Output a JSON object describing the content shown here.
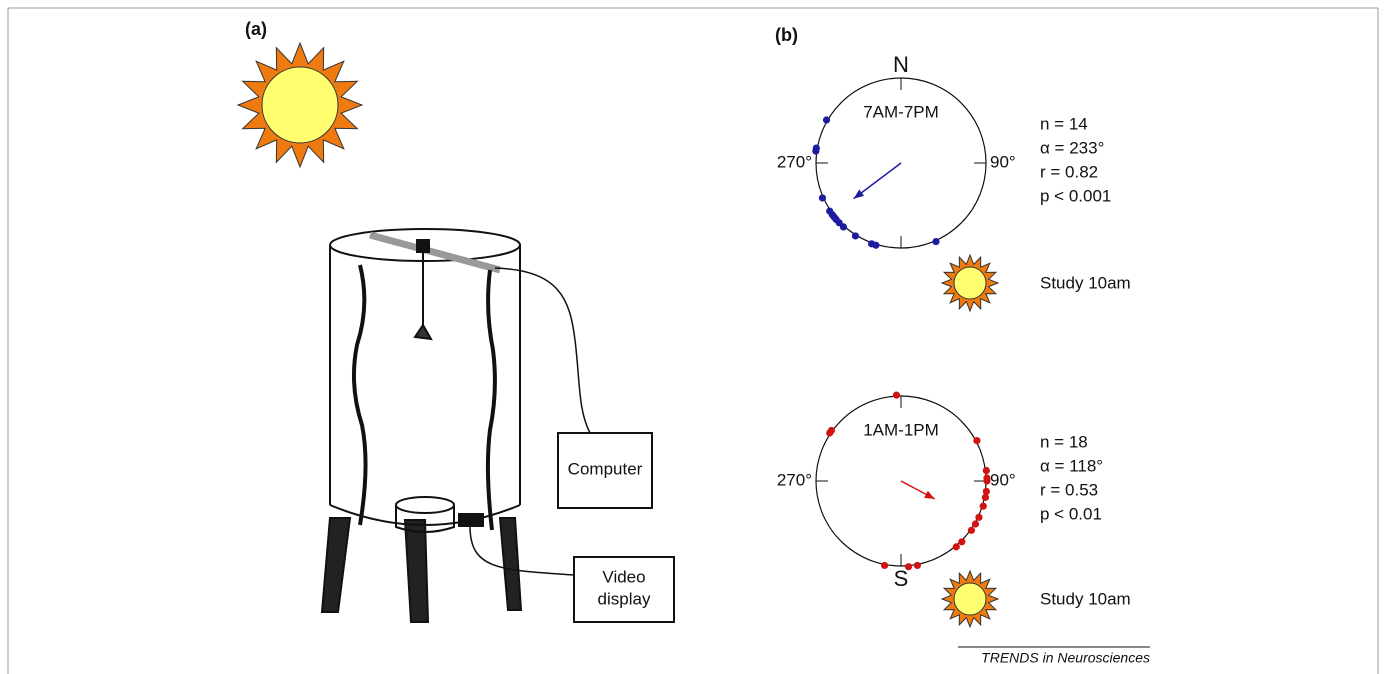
{
  "panel_a": {
    "label": "(a)",
    "computer": "Computer",
    "video_display": [
      "Video",
      "display"
    ]
  },
  "panel_b": {
    "label": "(b)",
    "plots": [
      {
        "top_label": "N",
        "period": "7AM-7PM",
        "left_label": "270°",
        "right_label": "90°",
        "stats": [
          "n = 14",
          "α = 233°",
          "r = 0.82",
          "p < 0.001"
        ],
        "sun_label": "Study 10am",
        "color": "#1c1ca0",
        "mean_angle": 233,
        "r": 0.82,
        "points": [
          300,
          280,
          278,
          246,
          236,
          233,
          231,
          229,
          226,
          222,
          212,
          200,
          197,
          156
        ]
      },
      {
        "bottom_label": "S",
        "period": "1AM-1PM",
        "left_label": "270°",
        "right_label": "90°",
        "stats": [
          "n = 18",
          "α = 118°",
          "r = 0.53",
          "p < 0.01"
        ],
        "sun_label": "Study 10am",
        "color": "#d01414",
        "mean_angle": 118,
        "r": 0.53,
        "points": [
          306,
          304,
          357,
          62,
          83,
          88,
          90,
          97,
          101,
          107,
          115,
          120,
          125,
          135,
          140,
          169,
          175,
          191
        ]
      }
    ]
  },
  "footer": "TRENDS in Neurosciences"
}
